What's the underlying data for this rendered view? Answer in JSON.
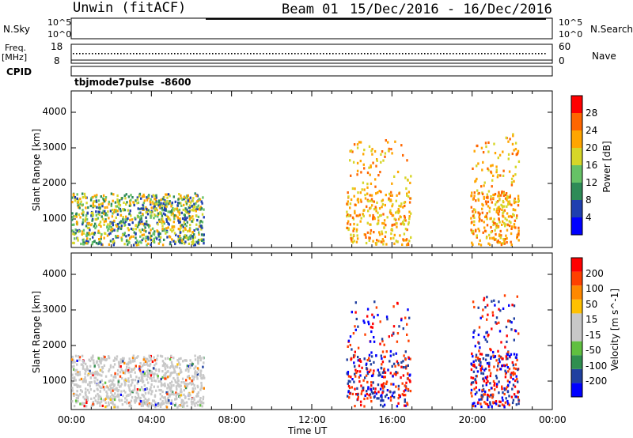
{
  "header": {
    "station": "Unwin (fitACF)",
    "beam": "Beam 01",
    "date_range": "15/Dec/2016 - 16/Dec/2016"
  },
  "top_panels": {
    "nsky_label": "N.Sky",
    "nsky_ticks": [
      "10^5",
      "10^0"
    ],
    "nsearch_label": "N.Search",
    "nsearch_ticks": [
      "10^5",
      "10^0"
    ],
    "freq_label": "Freq.",
    "freq_unit": "[MHz]",
    "freq_ticks": [
      "18",
      "8"
    ],
    "nave_label": "Nave",
    "nave_ticks": [
      "60",
      "0"
    ],
    "cpid_label": "CPID",
    "cpid_value": "tbjmode7pulse  -8600"
  },
  "colors": {
    "power_scale": [
      "#0000ff",
      "#1f3fb0",
      "#2e8b57",
      "#66c266",
      "#d6d628",
      "#ffa500",
      "#ff6600",
      "#ff0000"
    ],
    "velocity_scale": [
      "#ff0000",
      "#ff4000",
      "#ff8800",
      "#ffc000",
      "#c8c8c8",
      "#c8c8c8",
      "#60c040",
      "#2f8f4f",
      "#2040a0",
      "#0000ff"
    ]
  },
  "chart_data": [
    {
      "type": "heatmap",
      "title": "",
      "ylabel": "Slant Range [km]",
      "xlabel": "",
      "xlim": [
        "00:00",
        "00:00"
      ],
      "ylim": [
        200,
        4600
      ],
      "yticks": [
        "1000",
        "2000",
        "3000",
        "4000"
      ],
      "colorbar_label": "Power [dB]",
      "colorbar_ticks": [
        "4",
        "8",
        "12",
        "16",
        "20",
        "24",
        "28"
      ],
      "scatter_regions": [
        {
          "x": [
            0.0,
            6.6
          ],
          "y": [
            300,
            1750
          ],
          "value": "8-24 dB"
        },
        {
          "x": [
            13.7,
            16.9
          ],
          "y": [
            300,
            3300
          ],
          "value": "16-24 dB"
        },
        {
          "x": [
            19.9,
            22.3
          ],
          "y": [
            300,
            3500
          ],
          "value": "12-24 dB"
        }
      ]
    },
    {
      "type": "heatmap",
      "title": "",
      "ylabel": "Slant Range [km]",
      "xlabel": "Time UT",
      "xlim": [
        "00:00",
        "00:00"
      ],
      "ylim": [
        200,
        4600
      ],
      "yticks": [
        "1000",
        "2000",
        "3000",
        "4000"
      ],
      "xticks": [
        "00:00",
        "04:00",
        "08:00",
        "12:00",
        "16:00",
        "20:00",
        "00:00"
      ],
      "colorbar_label": "Velocity [m s^-1]",
      "colorbar_ticks": [
        "-200",
        "-100",
        "-50",
        "-15",
        "15",
        "50",
        "100",
        "200"
      ],
      "scatter_regions": [
        {
          "x": [
            0.0,
            6.6
          ],
          "y": [
            300,
            1750
          ],
          "value": "-15 to 15 m/s"
        },
        {
          "x": [
            13.7,
            16.9
          ],
          "y": [
            300,
            3300
          ],
          "value": "-200 to 200 m/s"
        },
        {
          "x": [
            19.9,
            22.3
          ],
          "y": [
            300,
            3500
          ],
          "value": "-200 to 200 m/s"
        }
      ]
    }
  ]
}
